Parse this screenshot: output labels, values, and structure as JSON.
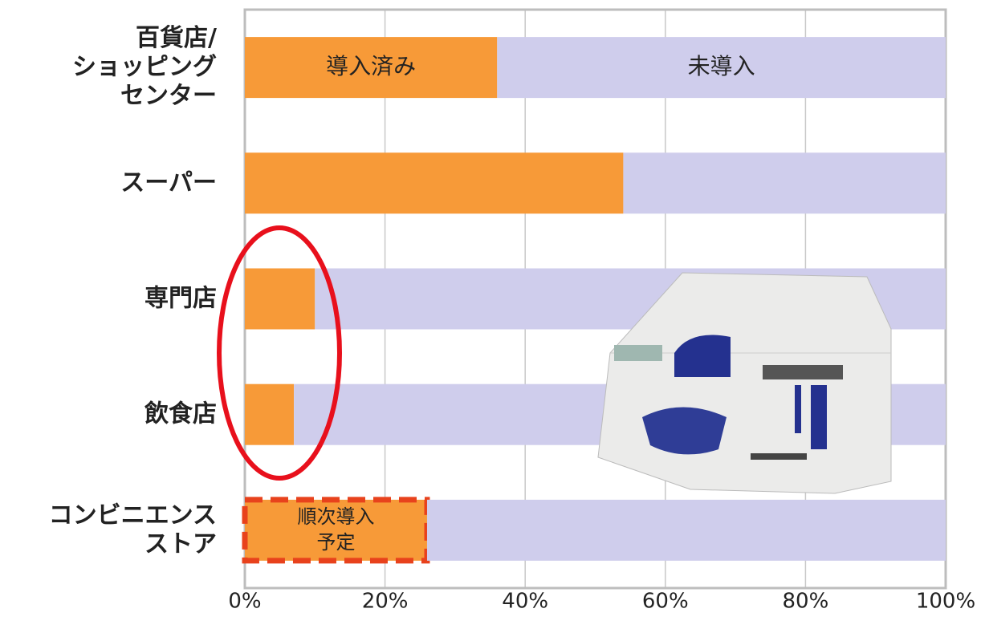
{
  "chart_data": {
    "type": "stacked-bar-horizontal",
    "categories": [
      "百貨店/\nショッピング\nセンター",
      "スーパー",
      "専門店",
      "飲食店",
      "コンビニエンス\nストア"
    ],
    "series": [
      {
        "name": "導入済み",
        "color": "#f79a38",
        "values": [
          36,
          54,
          10,
          7,
          null
        ]
      },
      {
        "name": "順次導入\n予定",
        "color": "#f79a38",
        "border": "dashed",
        "border_color": "#e8421c",
        "values": [
          null,
          null,
          null,
          null,
          26
        ]
      },
      {
        "name": "未導入",
        "color": "#cfcdec",
        "values": [
          64,
          46,
          90,
          93,
          74
        ]
      }
    ],
    "xlim": [
      0,
      100
    ],
    "xticks": [
      {
        "value": 0,
        "label": "0%"
      },
      {
        "value": 20,
        "label": "20%"
      },
      {
        "value": 40,
        "label": "40%"
      },
      {
        "value": 60,
        "label": "60%"
      },
      {
        "value": 80,
        "label": "80%"
      },
      {
        "value": 100,
        "label": "100%"
      }
    ],
    "grid": true
  }
}
